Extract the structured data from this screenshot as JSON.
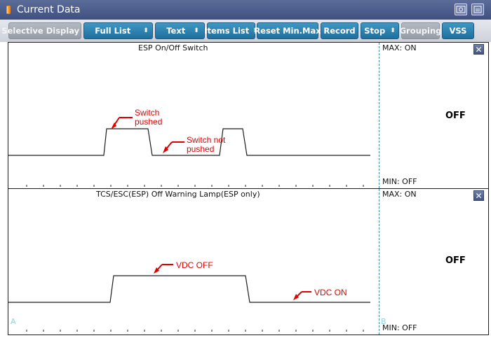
{
  "window": {
    "title": "Current Data",
    "icon": "flame-marker-icon"
  },
  "title_buttons": [
    {
      "icon": "capture-icon"
    },
    {
      "icon": "minimize-icon"
    }
  ],
  "toolbar": {
    "selective_display": "Selective Display",
    "full_list": "Full List",
    "text": "Text",
    "items_list": "Items List",
    "reset_min_max": "Reset Min.Max",
    "record": "Record",
    "stop": "Stop",
    "grouping": "Grouping",
    "vss": "VSS"
  },
  "panels": [
    {
      "title": "ESP On/Off Switch",
      "max_label": "MAX: ON",
      "min_label": "MIN: OFF",
      "value": "OFF",
      "annotations": [
        {
          "line1": "Switch",
          "line2": "pushed"
        },
        {
          "line1": "Switch not",
          "line2": "pushed"
        }
      ]
    },
    {
      "title": "TCS/ESC(ESP) Off Warning Lamp(ESP only)",
      "max_label": "MAX: ON",
      "min_label": "MIN: OFF",
      "value": "OFF",
      "annotations": [
        {
          "text": "VDC OFF"
        },
        {
          "text": "VDC ON"
        }
      ],
      "cursor_a": "A",
      "cursor_b": "B"
    }
  ],
  "colors": {
    "titlebar": "#4a5a8a",
    "button_blue": "#2a80ad",
    "button_gray": "#a3a9b2",
    "annotation": "#e00000"
  }
}
